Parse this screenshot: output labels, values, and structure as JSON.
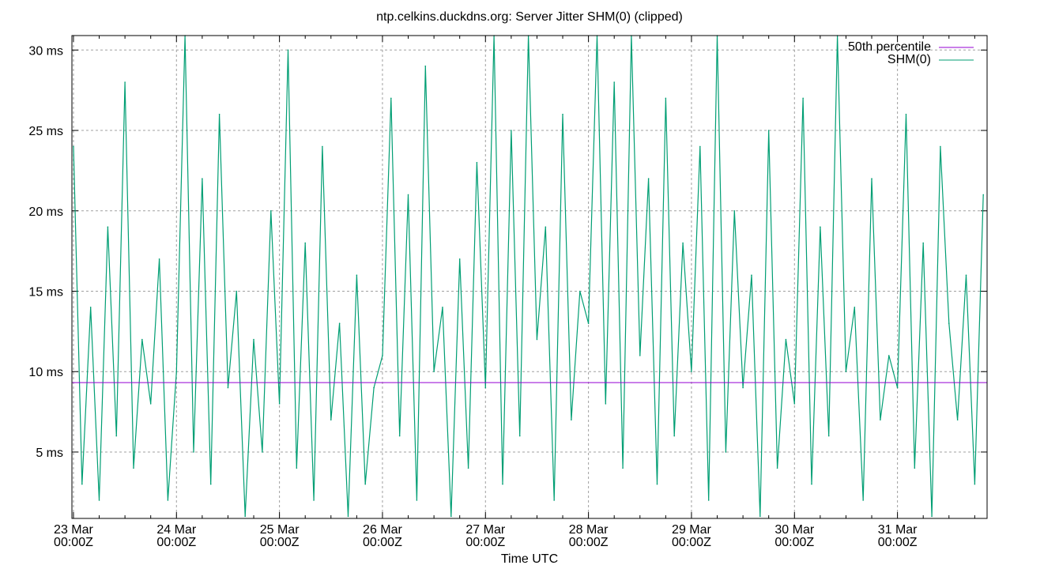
{
  "chart_data": {
    "type": "line",
    "title": "ntp.celkins.duckdns.org: Server Jitter SHM(0) (clipped)",
    "xlabel": "Time UTC",
    "ylabel": "",
    "x_tick_labels": [
      [
        "23 Mar",
        "00:00Z"
      ],
      [
        "24 Mar",
        "00:00Z"
      ],
      [
        "25 Mar",
        "00:00Z"
      ],
      [
        "26 Mar",
        "00:00Z"
      ],
      [
        "27 Mar",
        "00:00Z"
      ],
      [
        "28 Mar",
        "00:00Z"
      ],
      [
        "29 Mar",
        "00:00Z"
      ],
      [
        "30 Mar",
        "00:00Z"
      ],
      [
        "31 Mar",
        "00:00Z"
      ]
    ],
    "y_ticks": [
      5,
      10,
      15,
      20,
      25,
      30
    ],
    "y_tick_labels": [
      "5 ms",
      "10 ms",
      "15 ms",
      "20 ms",
      "25 ms",
      "30 ms"
    ],
    "ylim": [
      0.87,
      30.9
    ],
    "xlim_days_from_23_Mar": [
      -0.015,
      8.87
    ],
    "grid": true,
    "legend_position": "top-right",
    "series_start": "23 Mar 00:00Z",
    "series_interval_hours": 2,
    "series": [
      {
        "name": "50th percentile",
        "color": "#9400d3",
        "constant": 9.32
      },
      {
        "name": "SHM(0)",
        "color": "#009e73",
        "values": [
          24,
          3,
          14,
          2,
          19,
          6,
          28,
          4,
          12,
          8,
          17,
          2,
          10,
          31,
          5,
          22,
          3,
          26,
          9,
          15,
          1,
          12,
          5,
          20,
          8,
          30,
          4,
          18,
          2,
          24,
          7,
          13,
          1,
          16,
          3,
          9,
          11,
          27,
          6,
          21,
          2,
          29,
          10,
          14,
          1,
          17,
          4,
          23,
          9,
          31,
          3,
          25,
          6,
          31,
          12,
          19,
          2,
          26,
          7,
          15,
          13,
          31,
          8,
          28,
          4,
          31,
          11,
          22,
          3,
          27,
          6,
          18,
          10,
          24,
          2,
          31,
          5,
          20,
          9,
          16,
          1,
          25,
          4,
          12,
          8,
          27,
          3,
          19,
          6,
          31,
          10,
          14,
          2,
          22,
          7,
          11,
          9,
          26,
          4,
          18,
          1,
          24,
          13,
          7,
          16,
          3,
          21
        ]
      }
    ]
  }
}
